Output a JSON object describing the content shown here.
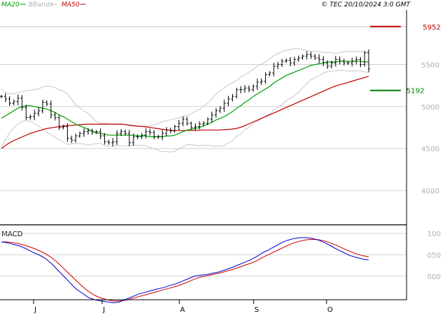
{
  "header": {
    "ma20_label": "MA20",
    "bbands_label": "BBands",
    "ma50_label": "MA50",
    "source_label": "© TEC 20/10/2024 3:0 GMT"
  },
  "colors": {
    "price_bars": "#000000",
    "ma20": "#00a000",
    "ma50": "#c00000",
    "bbands": "#c8c8c8",
    "grid": "#d0d0d0",
    "axis": "#000000",
    "axis_text": "#b0b0b0",
    "macd": "#0000cc",
    "signal": "#cc0000",
    "level_high": "#c00000",
    "level_low": "#008000"
  },
  "chart_data": [
    {
      "type": "ohlc-bars",
      "y_ticks": [
        4000,
        4500,
        5000,
        5500
      ],
      "y_tick_labels": [
        "4000",
        "4500",
        "5000",
        "5500"
      ],
      "ylim": [
        3600,
        6150
      ],
      "x_month_labels": [
        "J",
        "J",
        "A",
        "S",
        "O"
      ],
      "annotations": [
        {
          "label": "5952",
          "value": 5952,
          "color": "level_high"
        },
        {
          "label": "5192",
          "value": 5192,
          "color": "level_low"
        }
      ],
      "series": [
        {
          "name": "Price",
          "close": [
            5120,
            5090,
            5040,
            5060,
            5100,
            4990,
            4870,
            4880,
            4920,
            4950,
            5050,
            5030,
            4900,
            4870,
            4750,
            4760,
            4620,
            4600,
            4650,
            4680,
            4700,
            4710,
            4690,
            4700,
            4650,
            4580,
            4570,
            4580,
            4680,
            4700,
            4680,
            4570,
            4640,
            4640,
            4660,
            4700,
            4690,
            4640,
            4640,
            4680,
            4720,
            4710,
            4760,
            4800,
            4850,
            4800,
            4750,
            4760,
            4790,
            4800,
            4850,
            4900,
            4950,
            4980,
            5040,
            5090,
            5120,
            5200,
            5200,
            5220,
            5200,
            5240,
            5290,
            5300,
            5380,
            5400,
            5480,
            5500,
            5540,
            5550,
            5520,
            5560,
            5580,
            5600,
            5620,
            5600,
            5580,
            5560,
            5520,
            5480,
            5520,
            5560,
            5540,
            5520,
            5520,
            5540,
            5560,
            5500,
            5640,
            5450
          ]
        },
        {
          "name": "MA20",
          "values": [
            4860,
            4890,
            4920,
            4950,
            4980,
            5000,
            5010,
            5010,
            5000,
            4990,
            4980,
            4970,
            4950,
            4930,
            4900,
            4880,
            4850,
            4820,
            4790,
            4770,
            4750,
            4730,
            4710,
            4690,
            4680,
            4670,
            4660,
            4660,
            4660,
            4660,
            4660,
            4660,
            4660,
            4650,
            4650,
            4650,
            4640,
            4640,
            4640,
            4640,
            4650,
            4650,
            4660,
            4680,
            4700,
            4720,
            4730,
            4740,
            4750,
            4770,
            4790,
            4810,
            4840,
            4860,
            4880,
            4910,
            4940,
            4980,
            5010,
            5050,
            5080,
            5120,
            5150,
            5180,
            5210,
            5240,
            5280,
            5310,
            5340,
            5370,
            5390,
            5410,
            5430,
            5450,
            5470,
            5490,
            5500,
            5510,
            5520,
            5530,
            5530,
            5530,
            5540,
            5540,
            5540,
            5540,
            5540,
            5540,
            5530,
            5530
          ]
        },
        {
          "name": "MA50",
          "values": [
            4500,
            4550,
            4590,
            4620,
            4650,
            4680,
            4700,
            4720,
            4740,
            4750,
            4760,
            4770,
            4775,
            4780,
            4785,
            4790,
            4790,
            4790,
            4790,
            4790,
            4790,
            4790,
            4780,
            4770,
            4765,
            4760,
            4750,
            4740,
            4730,
            4720,
            4715,
            4715,
            4715,
            4715,
            4715,
            4720,
            4720,
            4720,
            4720,
            4725,
            4730,
            4740,
            4760,
            4790,
            4820,
            4850,
            4880,
            4910,
            4940,
            4970,
            5000,
            5030,
            5060,
            5090,
            5120,
            5150,
            5180,
            5210,
            5240,
            5260,
            5280,
            5300,
            5320,
            5340,
            5360
          ]
        },
        {
          "name": "MACD",
          "values": [
            0.8,
            0.78,
            0.74,
            0.7,
            0.64,
            0.56,
            0.5,
            0.42,
            0.3,
            0.15,
            0.0,
            -0.15,
            -0.3,
            -0.4,
            -0.5,
            -0.55,
            -0.58,
            -0.6,
            -0.62,
            -0.6,
            -0.54,
            -0.48,
            -0.42,
            -0.38,
            -0.34,
            -0.3,
            -0.27,
            -0.22,
            -0.18,
            -0.12,
            -0.06,
            0.0,
            0.02,
            0.04,
            0.07,
            0.1,
            0.15,
            0.2,
            0.26,
            0.32,
            0.38,
            0.46,
            0.55,
            0.62,
            0.7,
            0.78,
            0.84,
            0.88,
            0.9,
            0.9,
            0.88,
            0.84,
            0.78,
            0.7,
            0.62,
            0.55,
            0.48,
            0.44,
            0.4,
            0.38
          ]
        },
        {
          "name": "Signal",
          "values": [
            0.8,
            0.8,
            0.78,
            0.75,
            0.71,
            0.66,
            0.6,
            0.53,
            0.44,
            0.32,
            0.18,
            0.04,
            -0.1,
            -0.24,
            -0.36,
            -0.45,
            -0.51,
            -0.55,
            -0.58,
            -0.58,
            -0.56,
            -0.52,
            -0.48,
            -0.44,
            -0.4,
            -0.36,
            -0.32,
            -0.28,
            -0.24,
            -0.19,
            -0.13,
            -0.07,
            -0.02,
            0.01,
            0.04,
            0.07,
            0.11,
            0.15,
            0.2,
            0.25,
            0.3,
            0.36,
            0.44,
            0.51,
            0.58,
            0.65,
            0.72,
            0.78,
            0.82,
            0.85,
            0.86,
            0.85,
            0.82,
            0.77,
            0.71,
            0.64,
            0.58,
            0.52,
            0.48,
            0.45
          ]
        }
      ]
    },
    {
      "type": "line",
      "title": "MACD",
      "y_tick_labels": [
        "100",
        "050",
        "000"
      ],
      "y_ticks": [
        1.0,
        0.5,
        0.0
      ]
    }
  ]
}
